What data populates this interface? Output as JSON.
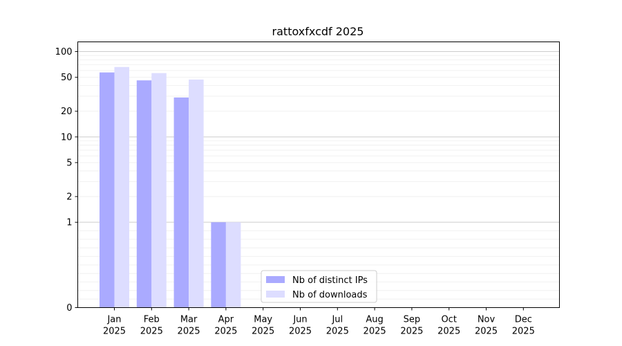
{
  "chart_data": {
    "type": "bar",
    "title": "rattoxfxcdf 2025",
    "xlabel": "",
    "ylabel": "",
    "yscale": "symlog",
    "ylim": [
      0,
      130
    ],
    "grid": "y-major-and-minor",
    "legend_position": "bottom-center",
    "categories": [
      [
        "Jan",
        "2025"
      ],
      [
        "Feb",
        "2025"
      ],
      [
        "Mar",
        "2025"
      ],
      [
        "Apr",
        "2025"
      ],
      [
        "May",
        "2025"
      ],
      [
        "Jun",
        "2025"
      ],
      [
        "Jul",
        "2025"
      ],
      [
        "Aug",
        "2025"
      ],
      [
        "Sep",
        "2025"
      ],
      [
        "Oct",
        "2025"
      ],
      [
        "Nov",
        "2025"
      ],
      [
        "Dec",
        "2025"
      ]
    ],
    "yticks": [
      0,
      1,
      2,
      5,
      10,
      20,
      50,
      100
    ],
    "series": [
      {
        "name": "Nb of distinct IPs",
        "color": "#aaaaff",
        "values": [
          57,
          46,
          29,
          1,
          0,
          0,
          0,
          0,
          0,
          0,
          0,
          0
        ]
      },
      {
        "name": "Nb of downloads",
        "color": "#ddddff",
        "values": [
          66,
          56,
          47,
          1,
          0,
          0,
          0,
          0,
          0,
          0,
          0,
          0
        ]
      }
    ]
  }
}
